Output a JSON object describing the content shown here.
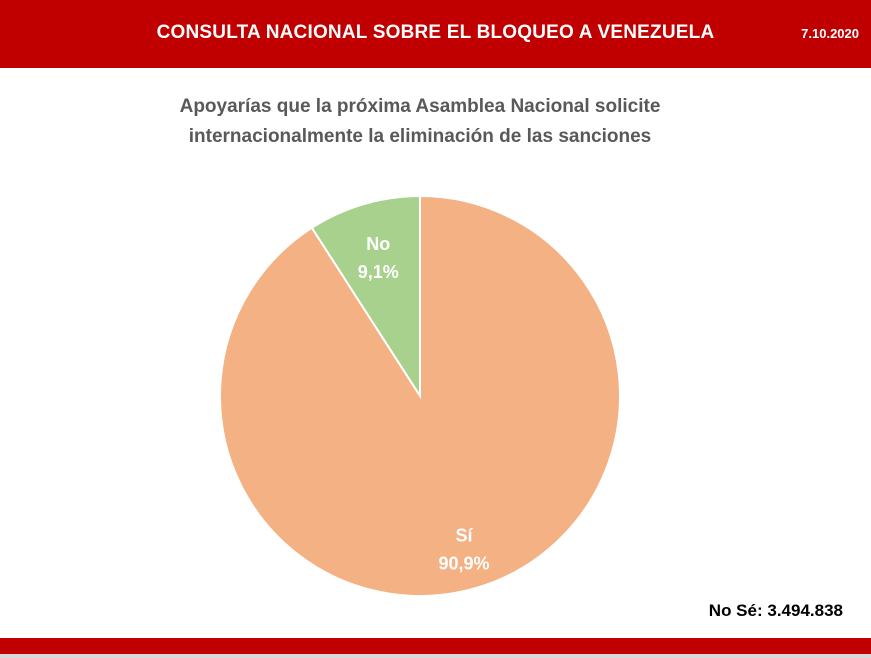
{
  "header": {
    "title": "CONSULTA NACIONAL SOBRE EL BLOQUEO A VENEZUELA",
    "date": "7.10.2020"
  },
  "footnote": "No Sé: 3.494.838",
  "colors": {
    "brand_red": "#c00000",
    "si_slice": "#f4b183",
    "no_slice": "#a9d18e",
    "title_text": "#595959"
  },
  "chart_data": {
    "type": "pie",
    "title_lines": [
      "Apoyarías que la próxima Asamblea Nacional solicite",
      "internacionalmente la eliminación de las sanciones"
    ],
    "slices": [
      {
        "label": "No",
        "value": 9.1,
        "value_label": "9,1%",
        "color": "#a9d18e"
      },
      {
        "label": "Sí",
        "value": 90.9,
        "value_label": "90,9%",
        "color": "#f4b183"
      }
    ],
    "start_angle_deg": 0,
    "direction": "counterclockwise",
    "legend": "none"
  }
}
